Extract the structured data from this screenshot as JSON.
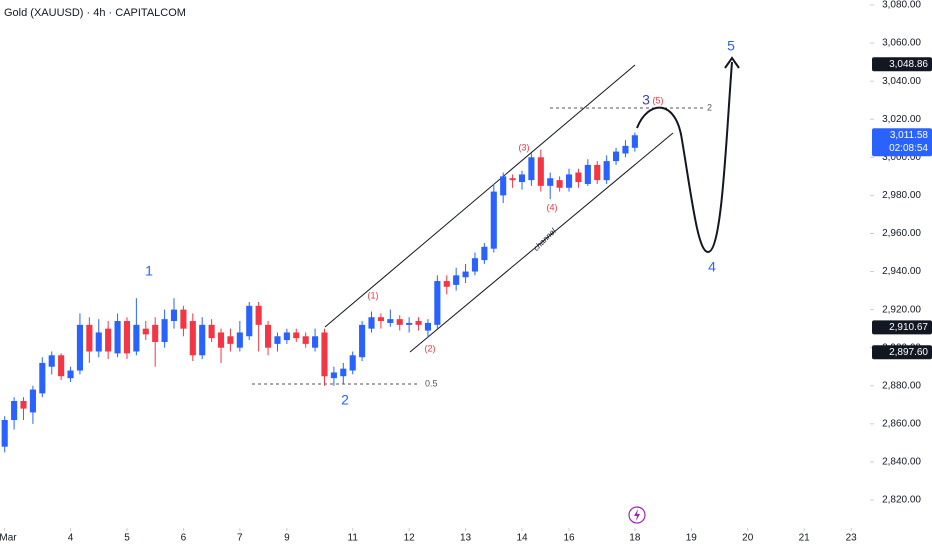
{
  "chart_data": {
    "type": "candlestick",
    "title": "Gold (XAUUSD) · 4h · CAPITALCOM",
    "up_color": "#2962ff",
    "down_color": "#f23645",
    "xlim": [
      -0.5,
      92
    ],
    "xticks": [
      {
        "value": 0,
        "label": "Mar"
      },
      {
        "value": 7,
        "label": "4"
      },
      {
        "value": 13,
        "label": "5"
      },
      {
        "value": 19,
        "label": "6"
      },
      {
        "value": 25,
        "label": "7"
      },
      {
        "value": 30,
        "label": "9"
      },
      {
        "value": 37,
        "label": "11"
      },
      {
        "value": 43,
        "label": "12"
      },
      {
        "value": 49,
        "label": "13"
      },
      {
        "value": 55,
        "label": "14"
      },
      {
        "value": 60,
        "label": "16"
      },
      {
        "value": 67,
        "label": "18"
      },
      {
        "value": 73,
        "label": "19"
      },
      {
        "value": 79,
        "label": "20"
      },
      {
        "value": 85,
        "label": "21"
      },
      {
        "value": 90,
        "label": "23"
      }
    ],
    "ylim": [
      2820,
      3080
    ],
    "yticks": [
      {
        "value": 2820,
        "label": "2,820.00"
      },
      {
        "value": 2840,
        "label": "2,840.00"
      },
      {
        "value": 2860,
        "label": "2,860.00"
      },
      {
        "value": 2880,
        "label": "2,880.00"
      },
      {
        "value": 2900,
        "label": "2,900.00"
      },
      {
        "value": 2920,
        "label": "2,920.00"
      },
      {
        "value": 2940,
        "label": "2,940.00"
      },
      {
        "value": 2960,
        "label": "2,960.00"
      },
      {
        "value": 2980,
        "label": "2,980.00"
      },
      {
        "value": 3000,
        "label": "3,000.00"
      },
      {
        "value": 3020,
        "label": "3,020.00"
      },
      {
        "value": 3040,
        "label": "3,040.00"
      },
      {
        "value": 3060,
        "label": "3,060.00"
      },
      {
        "value": 3080,
        "label": "3,080.00"
      }
    ],
    "open": [
      2848,
      2862,
      2872,
      2866,
      2876,
      2890,
      2896,
      2884,
      2888,
      2912,
      2898,
      2910,
      2897,
      2914,
      2898,
      2910,
      2912,
      2903,
      2914,
      2920,
      2914,
      2896,
      2912,
      2908,
      2906,
      2900,
      2906,
      2922,
      2912,
      2902,
      2904,
      2908,
      2906,
      2900,
      2908,
      2884,
      2885,
      2888,
      2895,
      2910,
      2916,
      2913,
      2915,
      2912,
      2914,
      2909,
      2912,
      2935,
      2933,
      2937,
      2940,
      2946,
      2952,
      2980,
      2989,
      2987,
      2988,
      3000,
      2985,
      2988,
      2984,
      2992,
      2986,
      2996,
      2988,
      2998,
      3002,
      3005
    ],
    "high": [
      2864,
      2874,
      2874,
      2880,
      2895,
      2898,
      2897,
      2890,
      2918,
      2916,
      2915,
      2914,
      2918,
      2916,
      2926,
      2914,
      2916,
      2920,
      2926,
      2922,
      2918,
      2916,
      2915,
      2910,
      2910,
      2914,
      2924,
      2924,
      2914,
      2908,
      2910,
      2910,
      2908,
      2910,
      2910,
      2890,
      2892,
      2898,
      2914,
      2919,
      2918,
      2920,
      2917,
      2916,
      2916,
      2915,
      2938,
      2938,
      2942,
      2944,
      2950,
      2955,
      2986,
      2992,
      2991,
      2993,
      3002,
      3004,
      2992,
      2990,
      2994,
      2994,
      2999,
      2998,
      3001,
      3005,
      3009,
      3013
    ],
    "low": [
      2845,
      2857,
      2862,
      2860,
      2874,
      2886,
      2883,
      2882,
      2886,
      2892,
      2895,
      2894,
      2895,
      2894,
      2896,
      2904,
      2890,
      2900,
      2910,
      2906,
      2893,
      2894,
      2903,
      2892,
      2898,
      2898,
      2904,
      2898,
      2896,
      2898,
      2902,
      2903,
      2900,
      2898,
      2880,
      2880,
      2881,
      2886,
      2893,
      2908,
      2910,
      2911,
      2909,
      2908,
      2909,
      2905,
      2910,
      2928,
      2930,
      2934,
      2938,
      2944,
      2950,
      2976,
      2984,
      2983,
      2985,
      2982,
      2978,
      2982,
      2982,
      2984,
      2985,
      2986,
      2986,
      2996,
      3000,
      3003
    ],
    "close": [
      2862,
      2872,
      2868,
      2878,
      2892,
      2896,
      2885,
      2888,
      2912,
      2898,
      2908,
      2898,
      2914,
      2897,
      2912,
      2907,
      2903,
      2915,
      2920,
      2910,
      2896,
      2912,
      2905,
      2900,
      2902,
      2908,
      2922,
      2912,
      2900,
      2906,
      2908,
      2905,
      2902,
      2906,
      2885,
      2887,
      2889,
      2896,
      2912,
      2916,
      2914,
      2915,
      2912,
      2913,
      2912,
      2913,
      2935,
      2932,
      2938,
      2940,
      2947,
      2953,
      2982,
      2990,
      2988,
      2991,
      3000,
      2985,
      2989,
      2984,
      2991,
      2987,
      2996,
      2988,
      2998,
      3003,
      3006,
      3011.58
    ],
    "price_labels": [
      {
        "value": 3048.86,
        "label": "3,048.86",
        "color": "#131722"
      },
      {
        "value": 3011.58,
        "label": "3,011.58",
        "color": "#2962ff"
      },
      {
        "value": 2910.67,
        "label": "2,910.67",
        "color": "#131722"
      },
      {
        "value": 2897.6,
        "label": "2,897.60",
        "color": "#131722"
      }
    ],
    "countdown": "02:08:54",
    "annotations": [
      "1",
      "2",
      "3",
      "(5)",
      "4",
      "5",
      "(1)",
      "(2)",
      "(3)",
      "(4)",
      "0.5",
      "2",
      "channel"
    ]
  }
}
